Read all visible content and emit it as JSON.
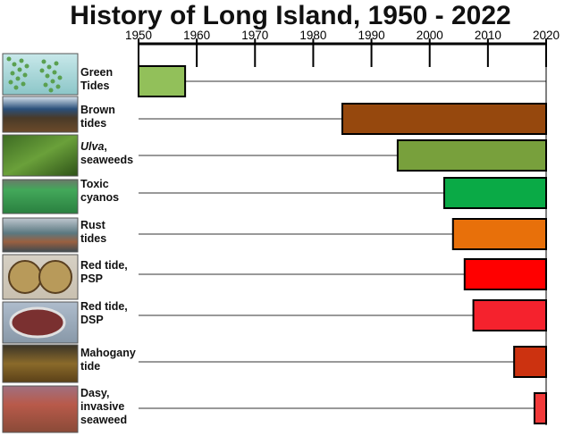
{
  "chart_data": {
    "type": "bar",
    "subtype": "horizontal-range (timeline)",
    "title": "History of Long Island, 1950 - 2022",
    "xaxis": {
      "ticks": [
        1950,
        1960,
        1970,
        1980,
        1990,
        2000,
        2010,
        2020
      ],
      "range": [
        1950,
        2020
      ]
    },
    "series": [
      {
        "name": "Green Tides",
        "label_parts": [
          {
            "text": "Green",
            "italic": false
          },
          {
            "text": "Tides",
            "italic": false
          }
        ],
        "start": 1950,
        "end": 1958,
        "color": "#92c05a",
        "image": "green-tides-photo"
      },
      {
        "name": "Brown tides",
        "label_parts": [
          {
            "text": "Brown",
            "italic": false
          },
          {
            "text": "tides",
            "italic": false
          }
        ],
        "start": 1985,
        "end": 2020,
        "color": "#96480d",
        "image": "brown-tides-photo"
      },
      {
        "name": "Ulva, seaweeds",
        "label_parts": [
          {
            "text": "Ulva",
            "italic": true
          },
          {
            "text": ",",
            "italic": false
          },
          {
            "text": "seaweeds",
            "italic": false
          }
        ],
        "start": 1994.5,
        "end": 2020,
        "color": "#78a03c",
        "image": "ulva-seaweeds-photo"
      },
      {
        "name": "Toxic cyanos",
        "label_parts": [
          {
            "text": "Toxic",
            "italic": false
          },
          {
            "text": "cyanos",
            "italic": false
          }
        ],
        "start": 2002.5,
        "end": 2020,
        "color": "#0aaa46",
        "image": "toxic-cyanos-photo"
      },
      {
        "name": "Rust tides",
        "label_parts": [
          {
            "text": "Rust",
            "italic": false
          },
          {
            "text": "tides",
            "italic": false
          }
        ],
        "start": 2004,
        "end": 2020,
        "color": "#e8700a",
        "image": "rust-tides-photo"
      },
      {
        "name": "Red tide, PSP",
        "label_parts": [
          {
            "text": "Red tide,",
            "italic": false
          },
          {
            "text": "PSP",
            "italic": false
          }
        ],
        "start": 2006,
        "end": 2020,
        "color": "#ff0000",
        "image": "red-tide-psp-photo"
      },
      {
        "name": "Red tide, DSP",
        "label_parts": [
          {
            "text": "Red tide,",
            "italic": false
          },
          {
            "text": "DSP",
            "italic": false
          }
        ],
        "start": 2007.5,
        "end": 2020,
        "color": "#f5222d",
        "image": "red-tide-dsp-photo"
      },
      {
        "name": "Mahogany tide",
        "label_parts": [
          {
            "text": "Mahogany",
            "italic": false
          },
          {
            "text": "tide",
            "italic": false
          }
        ],
        "start": 2014.5,
        "end": 2020,
        "color": "#cc3210",
        "image": "mahogany-tide-photo"
      },
      {
        "name": "Dasy, invasive seaweed",
        "label_parts": [
          {
            "text": "Dasy,",
            "italic": false
          },
          {
            "text": "invasive",
            "italic": false
          },
          {
            "text": "seaweed",
            "italic": false
          }
        ],
        "start": 2018,
        "end": 2020,
        "color": "#f23a3a",
        "image": "dasy-invasive-seaweed-photo"
      }
    ],
    "grid": false,
    "legend": "none"
  }
}
